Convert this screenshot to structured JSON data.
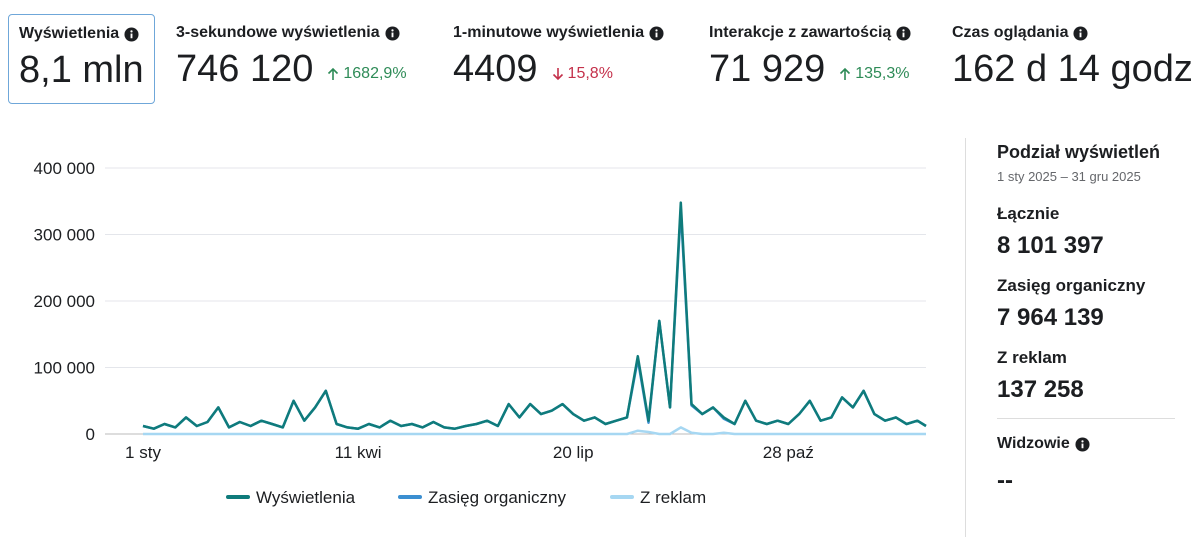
{
  "metrics": [
    {
      "label": "Wyświetlenia",
      "value": "8,1 mln"
    },
    {
      "label": "3-sekundowe wyświetlenia",
      "value": "746 120",
      "change": "1682,9%",
      "direction": "up"
    },
    {
      "label": "1-minutowe wyświetlenia",
      "value": "4409",
      "change": "15,8%",
      "direction": "down"
    },
    {
      "label": "Interakcje z zawartością",
      "value": "71 929",
      "change": "135,3%",
      "direction": "up"
    },
    {
      "label": "Czas oglądania",
      "value": "162 d 14 godz"
    }
  ],
  "chart_data": {
    "type": "line",
    "x": [
      1,
      6,
      11,
      16,
      21,
      26,
      31,
      36,
      41,
      46,
      51,
      56,
      61,
      66,
      71,
      76,
      81,
      86,
      91,
      96,
      101,
      106,
      111,
      116,
      121,
      126,
      131,
      136,
      141,
      146,
      151,
      156,
      161,
      166,
      171,
      176,
      181,
      186,
      191,
      196,
      201,
      206,
      211,
      216,
      221,
      226,
      231,
      236,
      241,
      246,
      251,
      256,
      261,
      266,
      271,
      276,
      281,
      286,
      291,
      296,
      301,
      306,
      311,
      316,
      321,
      326,
      331,
      336,
      341,
      346,
      351,
      356,
      361,
      365
    ],
    "xlim": [
      1,
      365
    ],
    "xticks": [
      {
        "value": 1,
        "label": "1 sty"
      },
      {
        "value": 101,
        "label": "11 kwi"
      },
      {
        "value": 201,
        "label": "20 lip"
      },
      {
        "value": 301,
        "label": "28 paź"
      }
    ],
    "ylim": [
      0,
      400000
    ],
    "yticks": [
      {
        "value": 0,
        "label": "0"
      },
      {
        "value": 100000,
        "label": "100 000"
      },
      {
        "value": 200000,
        "label": "200 000"
      },
      {
        "value": 300000,
        "label": "300 000"
      },
      {
        "value": 400000,
        "label": "400 000"
      }
    ],
    "grid": true,
    "series": [
      {
        "name": "Wyświetlenia",
        "color": "#0f7b7b",
        "values": [
          12000,
          8000,
          15000,
          10000,
          25000,
          12000,
          18000,
          40000,
          10000,
          18000,
          12000,
          20000,
          15000,
          10000,
          50000,
          20000,
          40000,
          65000,
          15000,
          10000,
          8000,
          15000,
          10000,
          20000,
          12000,
          15000,
          10000,
          18000,
          10000,
          8000,
          12000,
          15000,
          20000,
          12000,
          45000,
          25000,
          45000,
          30000,
          35000,
          45000,
          30000,
          20000,
          25000,
          15000,
          20000,
          25000,
          117000,
          20000,
          170000,
          40000,
          348000,
          45000,
          30000,
          40000,
          25000,
          15000,
          50000,
          20000,
          15000,
          20000,
          15000,
          30000,
          50000,
          20000,
          25000,
          55000,
          40000,
          65000,
          30000,
          20000,
          25000,
          15000,
          20000,
          12000
        ]
      },
      {
        "name": "Zasięg organiczny",
        "color": "#3b8fd1",
        "values": [
          12000,
          8000,
          15000,
          10000,
          25000,
          12000,
          18000,
          40000,
          10000,
          18000,
          12000,
          20000,
          15000,
          10000,
          50000,
          20000,
          40000,
          65000,
          15000,
          10000,
          8000,
          15000,
          10000,
          20000,
          12000,
          15000,
          10000,
          18000,
          10000,
          8000,
          12000,
          15000,
          20000,
          12000,
          45000,
          25000,
          45000,
          30000,
          35000,
          45000,
          30000,
          20000,
          25000,
          15000,
          20000,
          25000,
          112000,
          17000,
          170000,
          40000,
          338000,
          43000,
          30000,
          40000,
          23000,
          15000,
          50000,
          20000,
          15000,
          20000,
          15000,
          30000,
          50000,
          20000,
          25000,
          55000,
          40000,
          65000,
          30000,
          20000,
          25000,
          15000,
          20000,
          12000
        ]
      },
      {
        "name": "Z reklam",
        "color": "#a6d7f2",
        "values": [
          0,
          0,
          0,
          0,
          0,
          0,
          0,
          0,
          0,
          0,
          0,
          0,
          0,
          0,
          0,
          0,
          0,
          0,
          0,
          0,
          0,
          0,
          0,
          0,
          0,
          0,
          0,
          0,
          0,
          0,
          0,
          0,
          0,
          0,
          0,
          0,
          0,
          0,
          0,
          0,
          0,
          0,
          0,
          0,
          0,
          0,
          5000,
          3000,
          0,
          0,
          10000,
          2000,
          0,
          0,
          2000,
          0,
          0,
          0,
          0,
          0,
          0,
          0,
          0,
          0,
          0,
          0,
          0,
          0,
          0,
          0,
          0,
          0,
          0,
          0
        ]
      }
    ]
  },
  "sidebar": {
    "title": "Podział wyświetleń",
    "period": "1 sty 2025 – 31 gru 2025",
    "items": [
      {
        "label": "Łącznie",
        "value": "8 101 397"
      },
      {
        "label": "Zasięg organiczny",
        "value": "7 964 139"
      },
      {
        "label": "Z reklam",
        "value": "137 258"
      }
    ],
    "viewers": {
      "label": "Widzowie",
      "value": "--"
    }
  }
}
